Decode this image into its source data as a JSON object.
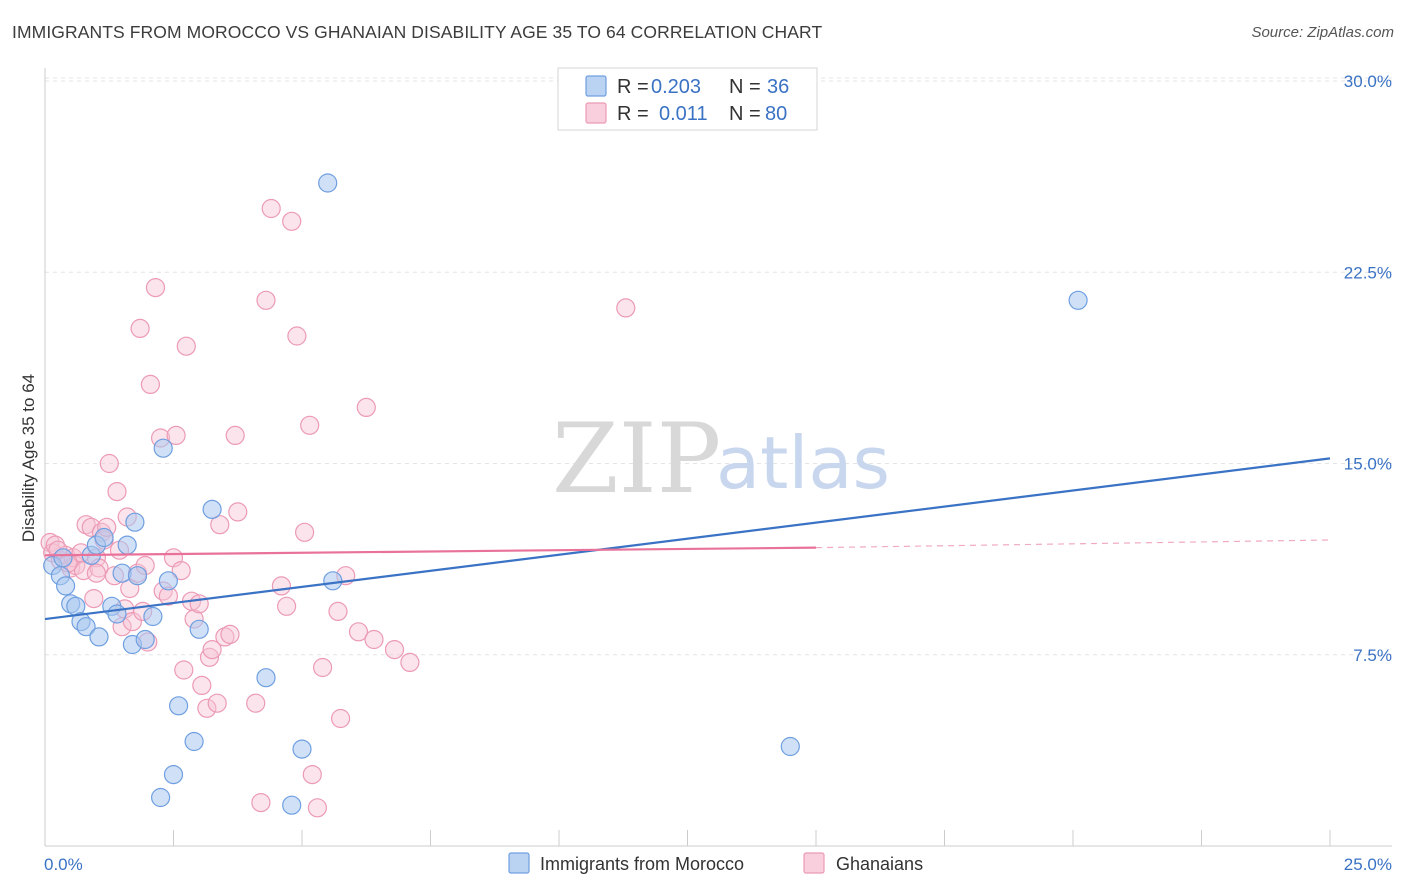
{
  "title": "IMMIGRANTS FROM MOROCCO VS GHANAIAN DISABILITY AGE 35 TO 64 CORRELATION CHART",
  "source": "Source: ZipAtlas.com",
  "watermark": {
    "zip": "ZIP",
    "atlas": "atlas"
  },
  "colors": {
    "blue": "#3a72c4",
    "blue_fill": "#aac8f0",
    "blue_stroke": "#6f9fe0",
    "pink": "#e8729a",
    "pink_fill": "#f7c3d4",
    "pink_stroke": "#ec9ab6",
    "tick_label": "#3a72c4",
    "grid": "#e4e4e4"
  },
  "legend": {
    "r_label": "R =",
    "n_label": "N =",
    "rows": [
      {
        "r": "0.203",
        "n": "36"
      },
      {
        "r": "0.011",
        "n": "80"
      }
    ]
  },
  "chart_data": {
    "type": "scatter",
    "title": "IMMIGRANTS FROM MOROCCO VS GHANAIAN DISABILITY AGE 35 TO 64 CORRELATION CHART",
    "xlabel": "",
    "ylabel": "Disability Age 35 to 64",
    "xlim": [
      0,
      25
    ],
    "ylim": [
      0,
      31
    ],
    "x_tick_labels": [
      "0.0%",
      "25.0%"
    ],
    "y_ticks": [
      7.5,
      15.0,
      22.5,
      30.0
    ],
    "y_tick_labels": [
      "7.5%",
      "15.0%",
      "22.5%",
      "30.0%"
    ],
    "grid": true,
    "legend_position": "top-center",
    "series": [
      {
        "name": "Immigrants from Morocco",
        "color": "#aac8f0",
        "trend": {
          "x": [
            0,
            25
          ],
          "y": [
            8.9,
            15.2
          ],
          "dashed_after": null
        },
        "points": [
          [
            0.15,
            11.0
          ],
          [
            0.3,
            10.6
          ],
          [
            0.35,
            11.3
          ],
          [
            0.4,
            10.2
          ],
          [
            0.5,
            9.5
          ],
          [
            0.6,
            9.4
          ],
          [
            0.7,
            8.8
          ],
          [
            0.8,
            8.6
          ],
          [
            0.9,
            11.4
          ],
          [
            1.0,
            11.8
          ],
          [
            1.05,
            8.2
          ],
          [
            1.15,
            12.1
          ],
          [
            1.3,
            9.4
          ],
          [
            1.4,
            9.1
          ],
          [
            1.5,
            10.7
          ],
          [
            1.6,
            11.8
          ],
          [
            1.7,
            7.9
          ],
          [
            1.75,
            12.7
          ],
          [
            1.8,
            10.6
          ],
          [
            1.95,
            8.1
          ],
          [
            2.1,
            9.0
          ],
          [
            2.25,
            1.9
          ],
          [
            2.3,
            15.6
          ],
          [
            2.4,
            10.4
          ],
          [
            2.5,
            2.8
          ],
          [
            2.6,
            5.5
          ],
          [
            2.9,
            4.1
          ],
          [
            3.0,
            8.5
          ],
          [
            3.25,
            13.2
          ],
          [
            4.3,
            6.6
          ],
          [
            4.8,
            1.6
          ],
          [
            5.0,
            3.8
          ],
          [
            5.6,
            10.4
          ],
          [
            5.5,
            26.0
          ],
          [
            14.5,
            3.9
          ],
          [
            20.1,
            21.4
          ]
        ]
      },
      {
        "name": "Ghanaians",
        "color": "#f7c3d4",
        "trend": {
          "x": [
            0,
            15
          ],
          "y": [
            11.4,
            11.7
          ],
          "dashed_to": [
            25,
            12.0
          ]
        },
        "points": [
          [
            0.1,
            11.9
          ],
          [
            0.15,
            11.5
          ],
          [
            0.2,
            11.8
          ],
          [
            0.3,
            11.2
          ],
          [
            0.4,
            11.4
          ],
          [
            0.5,
            10.9
          ],
          [
            0.55,
            11.3
          ],
          [
            0.6,
            11.0
          ],
          [
            0.7,
            11.5
          ],
          [
            0.75,
            10.8
          ],
          [
            0.8,
            12.6
          ],
          [
            0.9,
            12.5
          ],
          [
            0.95,
            9.7
          ],
          [
            1.0,
            11.3
          ],
          [
            1.05,
            10.9
          ],
          [
            1.1,
            12.3
          ],
          [
            1.15,
            12.0
          ],
          [
            1.2,
            12.5
          ],
          [
            1.25,
            15.0
          ],
          [
            1.35,
            10.6
          ],
          [
            1.4,
            13.9
          ],
          [
            1.45,
            11.6
          ],
          [
            1.5,
            8.6
          ],
          [
            1.55,
            9.3
          ],
          [
            1.6,
            12.9
          ],
          [
            1.65,
            10.1
          ],
          [
            1.7,
            8.8
          ],
          [
            1.8,
            10.7
          ],
          [
            1.85,
            20.3
          ],
          [
            1.9,
            9.2
          ],
          [
            1.95,
            11.0
          ],
          [
            2.0,
            8.0
          ],
          [
            2.05,
            18.1
          ],
          [
            2.15,
            21.9
          ],
          [
            2.25,
            16.0
          ],
          [
            2.3,
            10.0
          ],
          [
            2.4,
            9.8
          ],
          [
            2.5,
            11.3
          ],
          [
            2.55,
            16.1
          ],
          [
            2.65,
            10.8
          ],
          [
            2.7,
            6.9
          ],
          [
            2.75,
            19.6
          ],
          [
            2.85,
            9.6
          ],
          [
            2.9,
            8.9
          ],
          [
            3.0,
            9.5
          ],
          [
            3.05,
            6.3
          ],
          [
            3.15,
            5.4
          ],
          [
            3.2,
            7.4
          ],
          [
            3.25,
            7.7
          ],
          [
            3.35,
            5.6
          ],
          [
            3.4,
            12.6
          ],
          [
            3.5,
            8.2
          ],
          [
            3.6,
            8.3
          ],
          [
            3.7,
            16.1
          ],
          [
            3.75,
            13.1
          ],
          [
            4.1,
            5.6
          ],
          [
            4.2,
            1.7
          ],
          [
            4.3,
            21.4
          ],
          [
            4.4,
            25.0
          ],
          [
            4.6,
            10.2
          ],
          [
            4.7,
            9.4
          ],
          [
            4.8,
            24.5
          ],
          [
            4.9,
            20.0
          ],
          [
            5.05,
            12.3
          ],
          [
            5.15,
            16.5
          ],
          [
            5.2,
            2.8
          ],
          [
            5.3,
            1.5
          ],
          [
            5.4,
            7.0
          ],
          [
            5.7,
            9.2
          ],
          [
            5.75,
            5.0
          ],
          [
            5.85,
            10.6
          ],
          [
            6.1,
            8.4
          ],
          [
            6.25,
            17.2
          ],
          [
            6.4,
            8.1
          ],
          [
            6.8,
            7.7
          ],
          [
            7.1,
            7.2
          ],
          [
            11.3,
            21.1
          ],
          [
            0.25,
            11.6
          ],
          [
            0.45,
            11.1
          ],
          [
            1.0,
            10.7
          ]
        ]
      }
    ]
  },
  "bottom_legend": [
    {
      "label": "Immigrants from Morocco"
    },
    {
      "label": "Ghanaians"
    }
  ]
}
